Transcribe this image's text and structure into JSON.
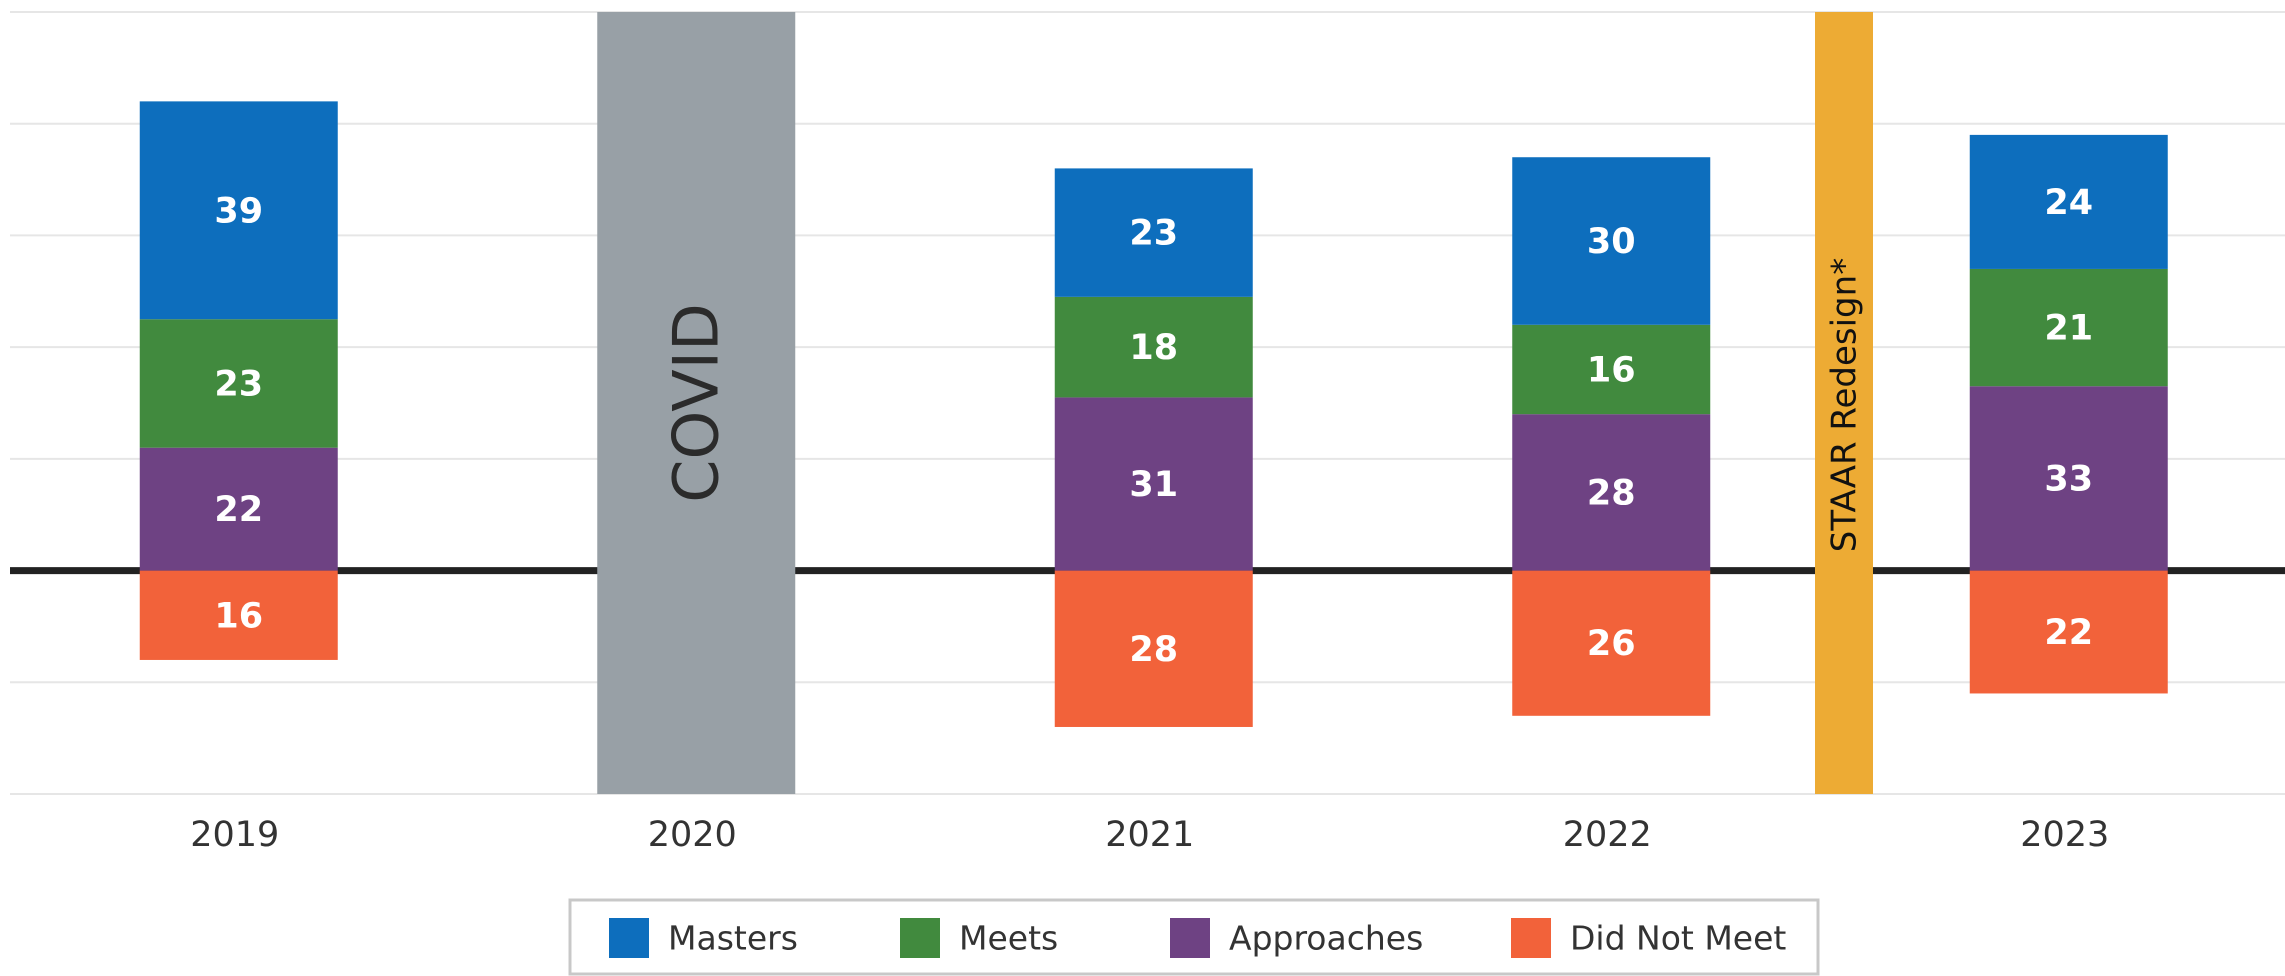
{
  "chart_data": {
    "type": "diverging-stacked-bar",
    "categories": [
      "2019",
      "2020",
      "2021",
      "2022",
      "2023"
    ],
    "series": [
      {
        "name": "Masters",
        "color": "#0d6ebd",
        "values": [
          39,
          null,
          23,
          30,
          24
        ]
      },
      {
        "name": "Meets",
        "color": "#418a3e",
        "values": [
          23,
          null,
          18,
          16,
          21
        ]
      },
      {
        "name": "Approaches",
        "color": "#6e4283",
        "values": [
          22,
          null,
          31,
          28,
          33
        ]
      },
      {
        "name": "Did Not Meet",
        "color": "#f2623a",
        "values": [
          -16,
          null,
          -28,
          -26,
          -22
        ],
        "value_labels": [
          "16",
          null,
          "28",
          "26",
          "22"
        ]
      }
    ],
    "ylim": [
      -40,
      100
    ],
    "yticks": [
      -40,
      -20,
      0,
      20,
      40,
      60,
      80,
      100
    ],
    "grid": true,
    "legend": "bottom",
    "annotations": [
      {
        "text": "COVID",
        "color": "#98a0a6"
      },
      {
        "text": "STAAR Redesign*",
        "color": "#edab34"
      }
    ]
  }
}
